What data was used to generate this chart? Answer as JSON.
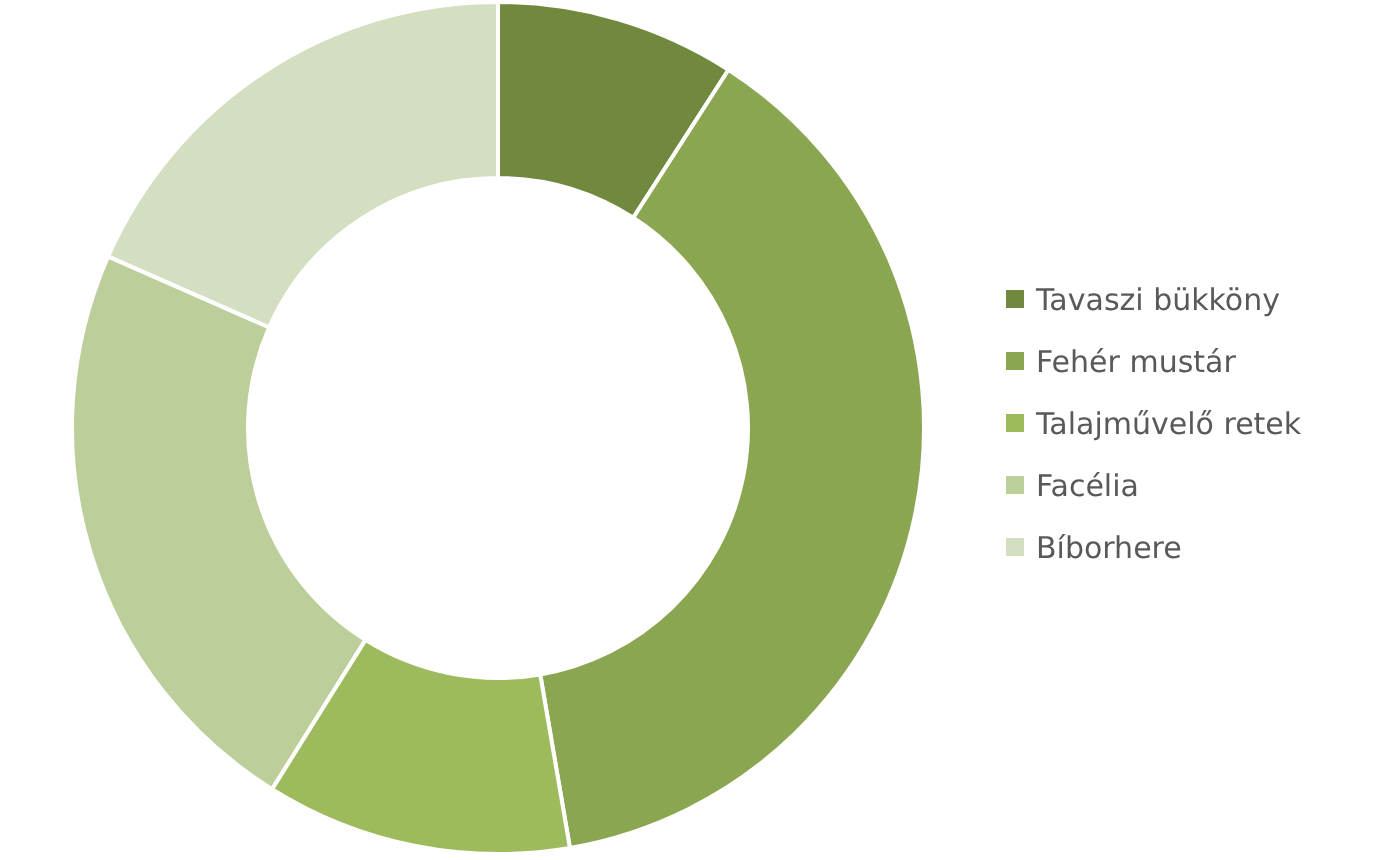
{
  "chart_data": {
    "type": "donut",
    "categories": [
      "Tavaszi bükköny",
      "Fehér mustár",
      "Talajművelő retek",
      "Facélia",
      "Bíborhere"
    ],
    "values": [
      9.1,
      38.2,
      11.6,
      22.7,
      18.4
    ],
    "colors": [
      "#71893f",
      "#8aa650",
      "#9dbb5c",
      "#bccf9a",
      "#d3dfc0"
    ],
    "legend": "right"
  }
}
